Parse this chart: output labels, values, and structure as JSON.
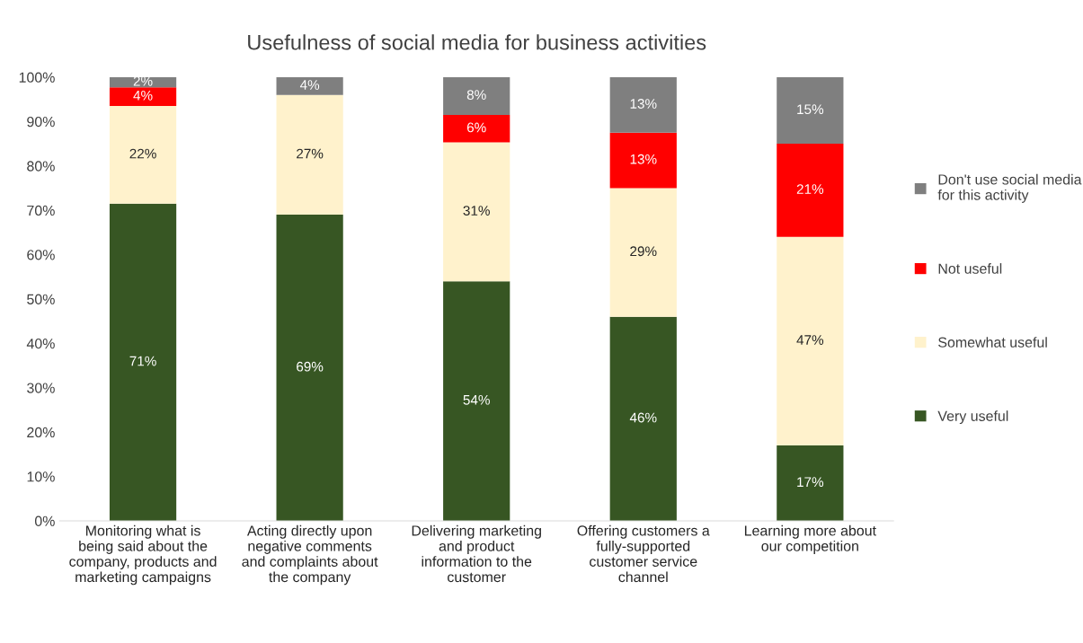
{
  "chart_data": {
    "type": "bar",
    "title": "Usefulness of social media for business activities",
    "categories": [
      "Monitoring what is\nbeing said about the\ncompany, products and\nmarketing campaigns",
      "Acting directly upon\nnegative comments\nand complaints about\nthe company",
      "Delivering marketing\nand product\ninformation to the\ncustomer",
      "Offering customers a\nfully-supported\ncustomer service\nchannel",
      "Learning more about\nour competition"
    ],
    "stacked": true,
    "series": [
      {
        "name": "Very useful",
        "color": "#375623",
        "values": [
          71.5,
          69,
          54,
          46,
          17
        ],
        "value_labels": [
          "71%",
          "69%",
          "54%",
          "46%",
          "17%"
        ]
      },
      {
        "name": "Somewhat useful",
        "color": "#fff2cc",
        "values": [
          22,
          27,
          31.3,
          29,
          47
        ],
        "value_labels": [
          "22%",
          "27%",
          "31%",
          "29%",
          "47%"
        ]
      },
      {
        "name": "Not useful",
        "color": "#ff0000",
        "values": [
          4.2,
          0,
          6.2,
          12.5,
          21
        ],
        "value_labels": [
          "4%",
          null,
          "6%",
          "13%",
          "21%"
        ]
      },
      {
        "name": "Don't use social media\nfor this activity",
        "color": "#7f7f7f",
        "values": [
          2.3,
          4,
          8.5,
          12.5,
          15
        ],
        "value_labels": [
          "2%",
          "4%",
          "8%",
          "13%",
          "15%"
        ]
      }
    ],
    "ylim": [
      0,
      100
    ],
    "yticks": [
      {
        "value": 0,
        "label": "0%"
      },
      {
        "value": 10,
        "label": "10%"
      },
      {
        "value": 20,
        "label": "20%"
      },
      {
        "value": 30,
        "label": "30%"
      },
      {
        "value": 40,
        "label": "40%"
      },
      {
        "value": 50,
        "label": "50%"
      },
      {
        "value": 60,
        "label": "60%"
      },
      {
        "value": 70,
        "label": "70%"
      },
      {
        "value": 80,
        "label": "80%"
      },
      {
        "value": 90,
        "label": "90%"
      },
      {
        "value": 100,
        "label": "100%"
      }
    ],
    "legend": "right"
  }
}
